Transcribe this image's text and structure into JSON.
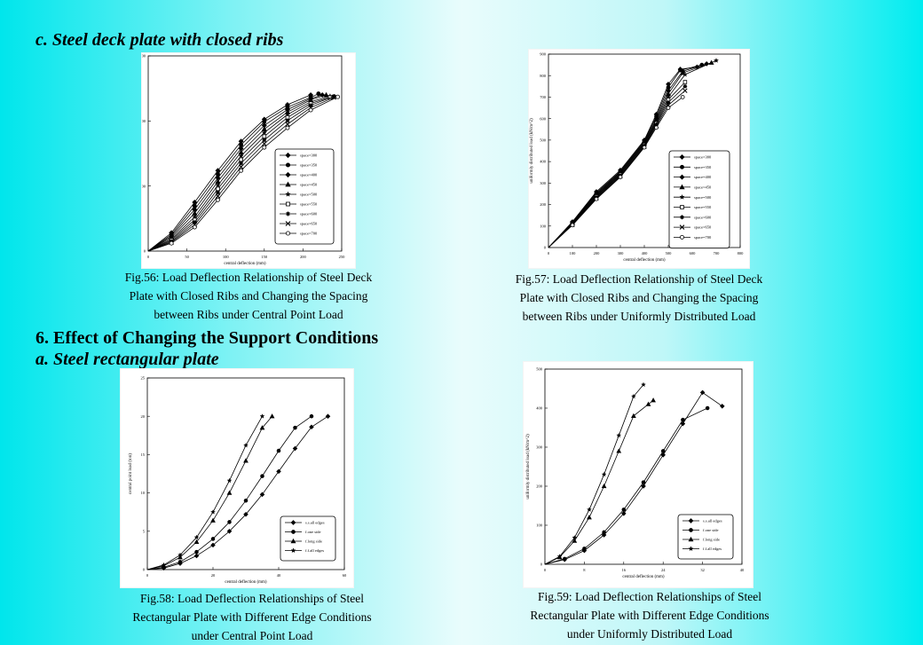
{
  "headings": {
    "sub_c": "c. Steel deck plate with closed ribs",
    "section_6": "6. Effect of Changing the Support Conditions",
    "sub_a": "a. Steel rectangular plate"
  },
  "captions": {
    "fig56": [
      "Fig.56: Load Deflection Relationship of Steel Deck",
      "Plate with Closed Ribs and Changing the Spacing",
      "between Ribs under Central Point Load"
    ],
    "fig57": [
      "Fig.57: Load Deflection Relationship of Steel Deck",
      "Plate with Closed Ribs and Changing the Spacing",
      "between Ribs under Uniformly Distributed Load"
    ],
    "fig58": [
      "Fig.58: Load Deflection Relationships of Steel",
      "Rectangular Plate with Different Edge Conditions",
      "under Central Point Load"
    ],
    "fig59": [
      "Fig.59: Load Deflection Relationships of Steel",
      "Rectangular Plate with Different Edge Conditions",
      "under Uniformly Distributed Load"
    ]
  },
  "chart_data": [
    {
      "id": "fig56",
      "type": "line",
      "xlabel": "central deflection (mm)",
      "ylabel": "central point load (ton)",
      "xticks": [
        "0",
        "50",
        "100",
        "150",
        "200",
        "250"
      ],
      "yticks": [
        "0",
        "200",
        "400",
        "600"
      ],
      "xlim": [
        0,
        250
      ],
      "ylim": [
        0,
        800
      ],
      "legend_position": "bottom-right",
      "series": [
        {
          "name": "space=300",
          "marker": "diamond",
          "x": [
            0,
            30,
            60,
            90,
            120,
            150,
            180,
            210
          ],
          "y": [
            0,
            75,
            200,
            330,
            450,
            540,
            600,
            640
          ]
        },
        {
          "name": "space=350",
          "marker": "circle",
          "x": [
            0,
            30,
            60,
            90,
            120,
            150,
            180,
            210,
            220
          ],
          "y": [
            0,
            68,
            185,
            315,
            435,
            530,
            590,
            630,
            645
          ]
        },
        {
          "name": "space=400",
          "marker": "diamond",
          "x": [
            0,
            30,
            60,
            90,
            120,
            150,
            180,
            210,
            225
          ],
          "y": [
            0,
            62,
            170,
            300,
            420,
            515,
            580,
            625,
            640
          ]
        },
        {
          "name": "space=450",
          "marker": "triangle",
          "x": [
            0,
            30,
            60,
            90,
            120,
            150,
            180,
            210,
            230
          ],
          "y": [
            0,
            56,
            155,
            285,
            405,
            500,
            570,
            620,
            640
          ]
        },
        {
          "name": "space=500",
          "marker": "star",
          "x": [
            0,
            30,
            60,
            90,
            120,
            150,
            180,
            210,
            235
          ],
          "y": [
            0,
            50,
            140,
            270,
            390,
            485,
            560,
            612,
            635
          ]
        },
        {
          "name": "space=550",
          "marker": "square-open",
          "x": [
            0,
            30,
            60,
            90,
            120,
            150,
            180,
            210,
            235
          ],
          "y": [
            0,
            45,
            128,
            255,
            375,
            470,
            548,
            605,
            630
          ]
        },
        {
          "name": "space=600",
          "marker": "asterisk",
          "x": [
            0,
            30,
            60,
            90,
            120,
            150,
            180,
            210,
            240
          ],
          "y": [
            0,
            40,
            118,
            240,
            360,
            455,
            535,
            597,
            635
          ]
        },
        {
          "name": "space=650",
          "marker": "x",
          "x": [
            0,
            30,
            60,
            90,
            120,
            150,
            180,
            210,
            240
          ],
          "y": [
            0,
            36,
            108,
            225,
            345,
            440,
            520,
            588,
            630
          ]
        },
        {
          "name": "space=700",
          "marker": "circle-open",
          "x": [
            0,
            30,
            60,
            90,
            120,
            150,
            180,
            210,
            245
          ],
          "y": [
            0,
            32,
            98,
            210,
            330,
            425,
            505,
            578,
            632
          ]
        }
      ]
    },
    {
      "id": "fig57",
      "type": "line",
      "xlabel": "central deflection (mm)",
      "ylabel": "uniformly distributed load (kN/m^2)",
      "xticks": [
        "0",
        "100",
        "200",
        "300",
        "400",
        "500",
        "600",
        "700",
        "800"
      ],
      "yticks": [
        "0",
        "100",
        "200",
        "300",
        "400",
        "500",
        "600",
        "700",
        "800",
        "900"
      ],
      "xlim": [
        0,
        800
      ],
      "ylim": [
        0,
        900
      ],
      "legend_position": "bottom-right",
      "series": [
        {
          "name": "space=300",
          "marker": "diamond",
          "x": [
            0,
            100,
            200,
            300,
            400,
            450,
            500,
            550,
            620
          ],
          "y": [
            0,
            120,
            260,
            360,
            500,
            620,
            760,
            830,
            840
          ]
        },
        {
          "name": "space=350",
          "marker": "circle",
          "x": [
            0,
            100,
            200,
            300,
            400,
            450,
            500,
            550,
            640
          ],
          "y": [
            0,
            118,
            255,
            355,
            495,
            610,
            745,
            825,
            850
          ]
        },
        {
          "name": "space=400",
          "marker": "diamond",
          "x": [
            0,
            100,
            200,
            300,
            400,
            450,
            500,
            560,
            660
          ],
          "y": [
            0,
            116,
            250,
            352,
            490,
            600,
            730,
            820,
            855
          ]
        },
        {
          "name": "space=450",
          "marker": "triangle",
          "x": [
            0,
            100,
            200,
            300,
            400,
            450,
            500,
            560,
            680
          ],
          "y": [
            0,
            114,
            246,
            348,
            486,
            592,
            715,
            812,
            860
          ]
        },
        {
          "name": "space=500",
          "marker": "star",
          "x": [
            0,
            100,
            200,
            300,
            400,
            450,
            500,
            570,
            700
          ],
          "y": [
            0,
            112,
            242,
            344,
            482,
            585,
            700,
            805,
            870
          ]
        },
        {
          "name": "space=550",
          "marker": "square-open",
          "x": [
            0,
            100,
            200,
            300,
            400,
            450,
            500,
            570
          ],
          "y": [
            0,
            110,
            238,
            340,
            478,
            578,
            688,
            770
          ]
        },
        {
          "name": "space=600",
          "marker": "asterisk",
          "x": [
            0,
            100,
            200,
            300,
            400,
            450,
            500,
            570
          ],
          "y": [
            0,
            108,
            234,
            336,
            474,
            572,
            675,
            750
          ]
        },
        {
          "name": "space=650",
          "marker": "x",
          "x": [
            0,
            100,
            200,
            300,
            400,
            450,
            500,
            570
          ],
          "y": [
            0,
            106,
            230,
            332,
            470,
            565,
            662,
            730
          ]
        },
        {
          "name": "space=700",
          "marker": "circle-open",
          "x": [
            0,
            100,
            200,
            300,
            400,
            450,
            500,
            560
          ],
          "y": [
            0,
            104,
            226,
            328,
            466,
            558,
            650,
            700
          ]
        }
      ]
    },
    {
      "id": "fig58",
      "type": "line",
      "xlabel": "central deflection (mm)",
      "ylabel": "central point load (ton)",
      "xticks": [
        "0",
        "20",
        "40",
        "60"
      ],
      "yticks": [
        "0",
        "5",
        "10",
        "15",
        "20",
        "25"
      ],
      "xlim": [
        0,
        60
      ],
      "ylim": [
        0,
        25
      ],
      "legend_position": "bottom-right",
      "series": [
        {
          "name": "s.s.all edges",
          "marker": "diamond",
          "x": [
            0,
            5,
            10,
            15,
            20,
            25,
            30,
            35,
            40,
            45,
            50,
            55
          ],
          "y": [
            0,
            0.2,
            0.8,
            1.8,
            3.2,
            5.0,
            7.2,
            9.8,
            12.8,
            15.8,
            18.6,
            20.0
          ]
        },
        {
          "name": "f.one side",
          "marker": "circle",
          "x": [
            0,
            5,
            10,
            15,
            20,
            25,
            30,
            35,
            40,
            45,
            50
          ],
          "y": [
            0,
            0.3,
            1.0,
            2.3,
            4.0,
            6.2,
            9.0,
            12.2,
            15.5,
            18.5,
            20.0
          ]
        },
        {
          "name": "f.long side",
          "marker": "triangle",
          "x": [
            0,
            5,
            10,
            15,
            20,
            25,
            30,
            35,
            38
          ],
          "y": [
            0,
            0.5,
            1.6,
            3.6,
            6.4,
            10.0,
            14.2,
            18.5,
            20.0
          ]
        },
        {
          "name": "f.f.all edges",
          "marker": "star",
          "x": [
            0,
            5,
            10,
            15,
            20,
            25,
            30,
            35
          ],
          "y": [
            0,
            0.6,
            1.9,
            4.2,
            7.5,
            11.6,
            16.2,
            20.0
          ]
        }
      ]
    },
    {
      "id": "fig59",
      "type": "line",
      "xlabel": "central deflection (mm)",
      "ylabel": "uniformly distributed load (kN/m^2)",
      "xticks": [
        "0",
        "8",
        "16",
        "24",
        "32",
        "40"
      ],
      "yticks": [
        "0",
        "100",
        "200",
        "300",
        "400",
        "500"
      ],
      "xlim": [
        0,
        40
      ],
      "ylim": [
        0,
        500
      ],
      "legend_position": "bottom-right",
      "series": [
        {
          "name": "s.s.all edges",
          "marker": "diamond",
          "x": [
            0,
            4,
            8,
            12,
            16,
            20,
            24,
            28,
            32,
            36
          ],
          "y": [
            0,
            12,
            35,
            75,
            130,
            200,
            280,
            360,
            440,
            405
          ]
        },
        {
          "name": "f.one side",
          "marker": "circle",
          "x": [
            0,
            4,
            8,
            12,
            16,
            20,
            24,
            28,
            33
          ],
          "y": [
            0,
            14,
            40,
            82,
            140,
            210,
            290,
            370,
            400
          ]
        },
        {
          "name": "f.long side",
          "marker": "triangle",
          "x": [
            0,
            3,
            6,
            9,
            12,
            15,
            18,
            21,
            22
          ],
          "y": [
            0,
            18,
            60,
            120,
            200,
            290,
            380,
            410,
            420
          ]
        },
        {
          "name": "f.f.all edges",
          "marker": "star",
          "x": [
            0,
            3,
            6,
            9,
            12,
            15,
            18,
            20
          ],
          "y": [
            0,
            20,
            68,
            140,
            230,
            330,
            430,
            460
          ]
        }
      ]
    }
  ]
}
